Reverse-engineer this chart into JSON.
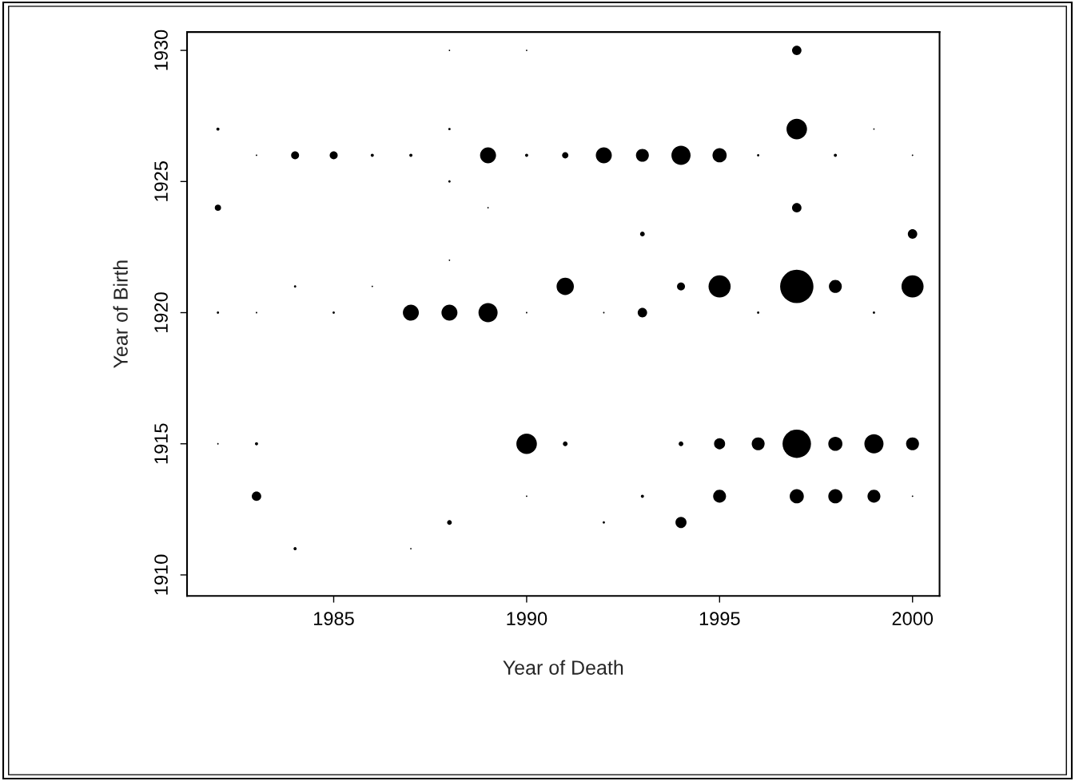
{
  "chart_data": {
    "type": "bubble",
    "xlabel": "Year of Death",
    "ylabel": "Year of Birth",
    "xlim": [
      1981.2,
      2000.7
    ],
    "ylim": [
      1909.2,
      1930.7
    ],
    "xticks": [
      1985,
      1990,
      1995,
      2000
    ],
    "yticks": [
      1910,
      1915,
      1920,
      1925,
      1930
    ],
    "grid": false,
    "legend": false,
    "series": [
      {
        "color": "#000000",
        "x": [
          1988,
          1990,
          1997,
          1982,
          1988,
          1997,
          1999,
          1983,
          1984,
          1985,
          1986,
          1987,
          1989,
          1990,
          1991,
          1992,
          1993,
          1994,
          1995,
          1996,
          1998,
          2000,
          1988,
          1982,
          1989,
          1997,
          1993,
          2000,
          1988,
          1984,
          1986,
          1991,
          1994,
          1995,
          1997,
          1998,
          2000,
          1982,
          1983,
          1985,
          1987,
          1988,
          1989,
          1990,
          1992,
          1993,
          1996,
          1999,
          1982,
          1983,
          1990,
          1991,
          1994,
          1995,
          1996,
          1997,
          1998,
          1999,
          2000,
          1983,
          1990,
          1993,
          1995,
          1997,
          1998,
          1999,
          2000,
          1988,
          1992,
          1994,
          1984,
          1987
        ],
        "values": [
          1930,
          1930,
          1930,
          1927,
          1927,
          1927,
          1927,
          1926,
          1926,
          1926,
          1926,
          1926,
          1926,
          1926,
          1926,
          1926,
          1926,
          1926,
          1926,
          1926,
          1926,
          1926,
          1925,
          1924,
          1924,
          1924,
          1923,
          1923,
          1922,
          1921,
          1921,
          1921,
          1921,
          1921,
          1921,
          1921,
          1921,
          1920,
          1920,
          1920,
          1920,
          1920,
          1920,
          1920,
          1920,
          1920,
          1920,
          1920,
          1915,
          1915,
          1915,
          1915,
          1915,
          1915,
          1915,
          1915,
          1915,
          1915,
          1915,
          1913,
          1913,
          1913,
          1913,
          1913,
          1913,
          1913,
          1913,
          1912,
          1912,
          1912,
          1911,
          1911
        ],
        "sizes": [
          0.002,
          0.002,
          0.08,
          0.009,
          0.005,
          0.38,
          0.002,
          0.002,
          0.057,
          0.057,
          0.009,
          0.009,
          0.23,
          0.009,
          0.036,
          0.23,
          0.15,
          0.33,
          0.18,
          0.005,
          0.009,
          0.002,
          0.005,
          0.036,
          0.002,
          0.08,
          0.02,
          0.08,
          0.002,
          0.005,
          0.002,
          0.27,
          0.057,
          0.44,
          1,
          0.15,
          0.44,
          0.005,
          0.002,
          0.005,
          0.23,
          0.23,
          0.33,
          0.002,
          0.002,
          0.08,
          0.005,
          0.005,
          0.002,
          0.009,
          0.38,
          0.02,
          0.02,
          0.11,
          0.15,
          0.73,
          0.18,
          0.33,
          0.15,
          0.08,
          0.002,
          0.009,
          0.15,
          0.18,
          0.18,
          0.15,
          0.002,
          0.02,
          0.005,
          0.11,
          0.009,
          0.002
        ]
      }
    ]
  }
}
